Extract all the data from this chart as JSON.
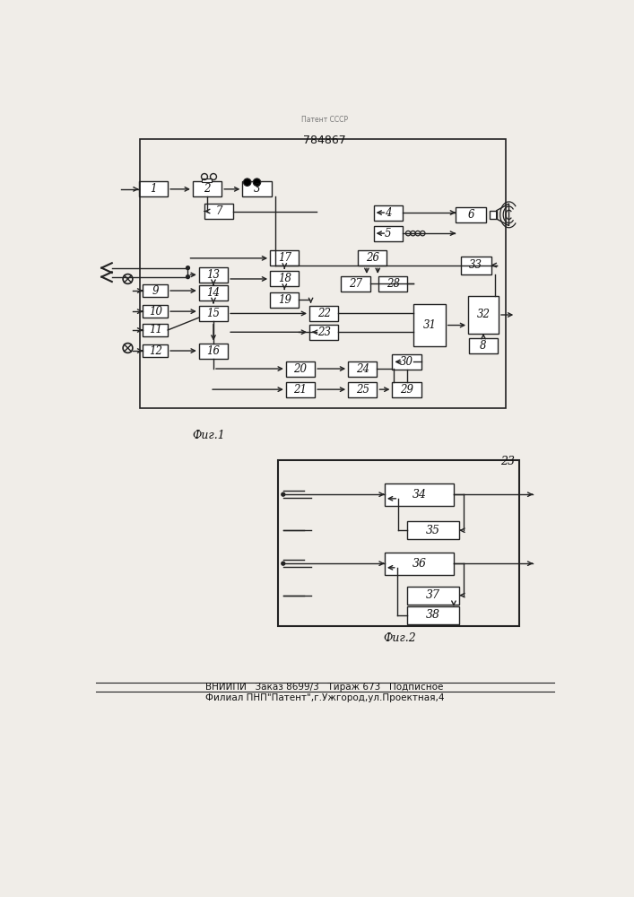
{
  "title": "784867",
  "fig1_label": "Фиг.1",
  "fig2_label": "Фиг.2",
  "footer_line1": "ВНИИПИ   Заказ 8699/3   Тираж 673   Подписное",
  "footer_line2": "Филиал ПНП\"Патент\",г.Ужгород,ул.Проектная,4",
  "bg_color": "#f0ede8",
  "box_color": "#ffffff",
  "box_edge": "#222222",
  "line_color": "#222222",
  "text_color": "#111111"
}
